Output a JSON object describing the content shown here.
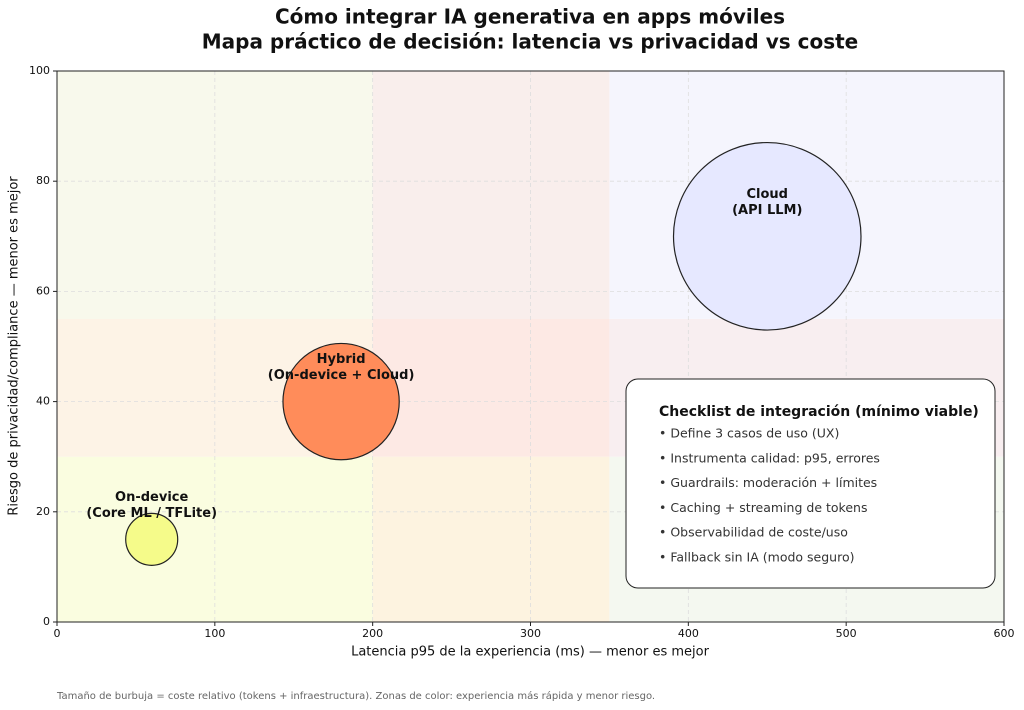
{
  "chart_data": {
    "type": "bubble",
    "title": [
      "Cómo integrar IA generativa en apps móviles",
      "Mapa práctico de decisión: latencia vs privacidad vs coste"
    ],
    "xlabel": "Latencia p95 de la experiencia (ms) — menor es mejor",
    "ylabel": "Riesgo de privacidad/compliance — menor es mejor",
    "xlim": [
      0,
      600
    ],
    "ylim": [
      0,
      100
    ],
    "xticks": [
      0,
      100,
      200,
      300,
      400,
      500,
      600
    ],
    "yticks": [
      0,
      20,
      40,
      60,
      80,
      100
    ],
    "grid": true,
    "zones": {
      "x": [
        200,
        350
      ],
      "y": [
        30,
        55
      ],
      "colors": [
        [
          "#fafde0",
          "#fdf3e0",
          "#f4f8f0"
        ],
        [
          "#fdf3e6",
          "#fde9e4",
          "#f8eef0"
        ],
        [
          "#f8f9ec",
          "#f9eeec",
          "#f5f5fd"
        ]
      ]
    },
    "series": [
      {
        "name": [
          "On-device",
          "(Core ML / TFLite)"
        ],
        "color": "#f5fb8a",
        "x": [
          60
        ],
        "values": [
          15
        ],
        "size": [
          1
        ]
      },
      {
        "name": [
          "Hybrid",
          "(On-device + Cloud)"
        ],
        "color": "#ff8c5a",
        "x": [
          180
        ],
        "values": [
          40
        ],
        "size": [
          5
        ]
      },
      {
        "name": [
          "Cloud",
          "(API LLM)"
        ],
        "color": "#e6e8ff",
        "x": [
          450
        ],
        "values": [
          70
        ],
        "size": [
          13
        ]
      }
    ],
    "checklist": {
      "title": "Checklist de integración (mínimo viable)",
      "items": [
        "• Define 3 casos de uso (UX)",
        "• Instrumenta calidad: p95, errores",
        "• Guardrails: moderación + límites",
        "• Caching + streaming de tokens",
        "• Observabilidad de coste/uso",
        "• Fallback sin IA (modo seguro)"
      ]
    },
    "footnote": "Tamaño de burbuja = coste relativo (tokens + infraestructura). Zonas de color: experiencia más rápida y menor riesgo."
  }
}
